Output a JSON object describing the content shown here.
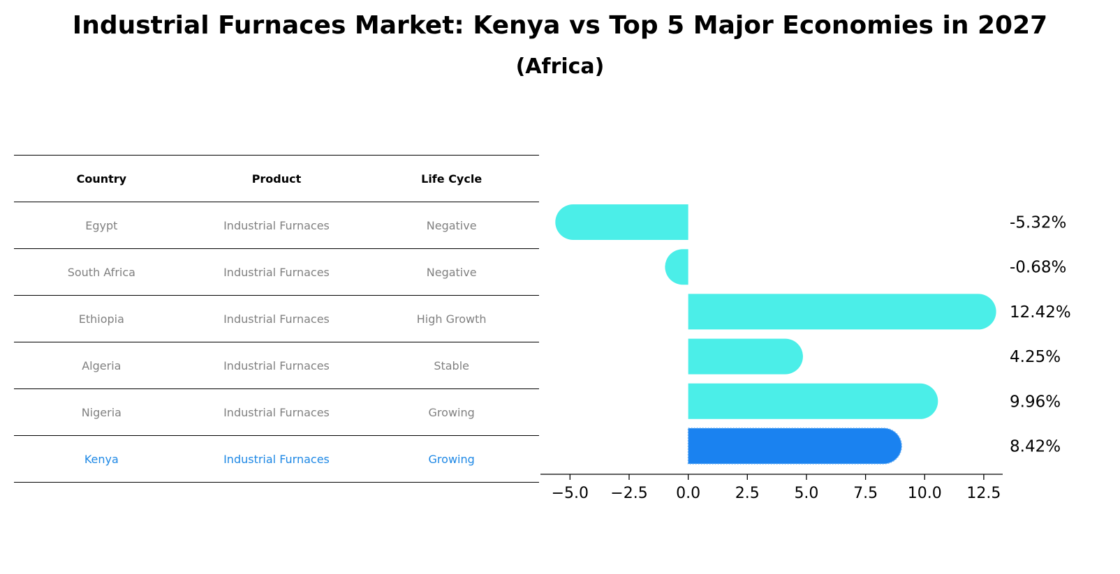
{
  "title": "Industrial Furnaces Market: Kenya vs Top 5 Major Economies in 2027",
  "subtitle": "(Africa)",
  "table": {
    "headers": [
      "Country",
      "Product",
      "Life Cycle"
    ],
    "rows": [
      {
        "country": "Egypt",
        "product": "Industrial Furnaces",
        "life_cycle": "Negative"
      },
      {
        "country": "South Africa",
        "product": "Industrial Furnaces",
        "life_cycle": "Negative"
      },
      {
        "country": "Ethiopia",
        "product": "Industrial Furnaces",
        "life_cycle": "High Growth"
      },
      {
        "country": "Algeria",
        "product": "Industrial Furnaces",
        "life_cycle": "Stable"
      },
      {
        "country": "Nigeria",
        "product": "Industrial Furnaces",
        "life_cycle": "Growing"
      },
      {
        "country": "Kenya",
        "product": "Industrial Furnaces",
        "life_cycle": "Growing"
      }
    ]
  },
  "chart_data": {
    "type": "bar",
    "orientation": "horizontal",
    "categories": [
      "Egypt",
      "South Africa",
      "Ethiopia",
      "Algeria",
      "Nigeria",
      "Kenya"
    ],
    "values": [
      -5.32,
      -0.68,
      12.42,
      4.25,
      9.96,
      8.42
    ],
    "data_labels": [
      "-5.32%",
      "-0.68%",
      "12.42%",
      "4.25%",
      "9.96%",
      "8.42%"
    ],
    "highlight": "Kenya",
    "xlim": [
      -6.25,
      13.3
    ],
    "xticks": [
      -5.0,
      -2.5,
      0.0,
      2.5,
      5.0,
      7.5,
      10.0,
      12.5
    ],
    "xtick_labels": [
      "−5.0",
      "−2.5",
      "0.0",
      "2.5",
      "5.0",
      "7.5",
      "10.0",
      "12.5"
    ],
    "colors": {
      "bar": "#4beee8",
      "highlight": "#1a82f0"
    },
    "grid": false
  }
}
